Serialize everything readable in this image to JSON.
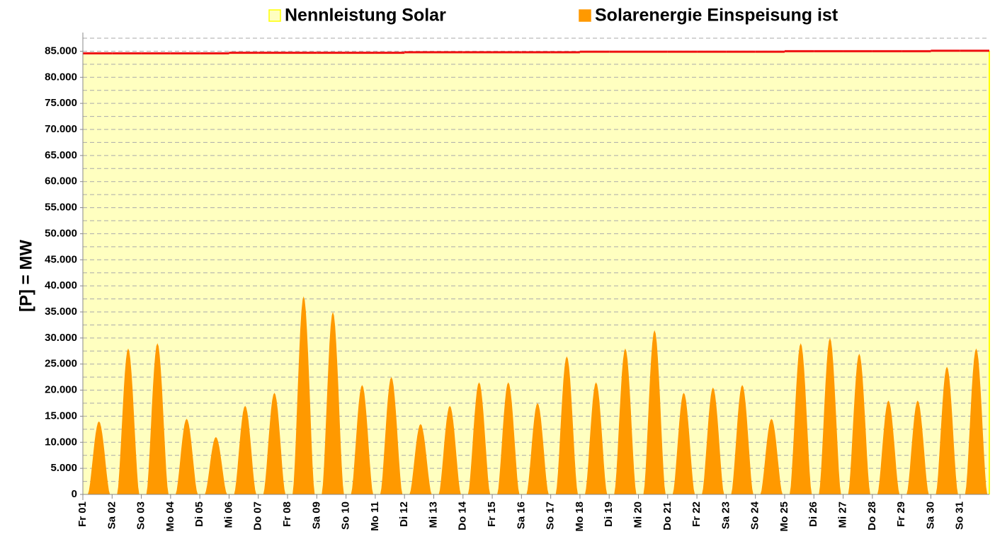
{
  "chart_data": {
    "type": "area",
    "y_label": "[P] = MW",
    "categories": [
      "Fr 01",
      "Sa 02",
      "So 03",
      "Mo 04",
      "Di 05",
      "Mi 06",
      "Do 07",
      "Fr 08",
      "Sa 09",
      "So 10",
      "Mo 11",
      "Di 12",
      "Mi 13",
      "Do 14",
      "Fr 15",
      "Sa 16",
      "So 17",
      "Mo 18",
      "Di 19",
      "Mi 20",
      "Do 21",
      "Fr 22",
      "Sa 23",
      "So 24",
      "Mo 25",
      "Di 26",
      "Mi 27",
      "Do 28",
      "Fr 29",
      "Sa 30",
      "So 31"
    ],
    "series": [
      {
        "name": "Nennleistung Solar",
        "color": "#ffffc0",
        "border_color": "#ffff00",
        "line_color": "#ee1111",
        "values": [
          84600,
          84600,
          84600,
          84600,
          84600,
          84700,
          84700,
          84700,
          84700,
          84700,
          84700,
          84800,
          84800,
          84800,
          84800,
          84800,
          84800,
          84900,
          84900,
          84900,
          84900,
          84900,
          84900,
          84900,
          85000,
          85000,
          85000,
          85000,
          85000,
          85100,
          85100
        ]
      },
      {
        "name": "Solarenergie Einspeisung ist",
        "color": "#ff9900",
        "values": [
          14000,
          28000,
          29000,
          14500,
          11000,
          17000,
          19500,
          38000,
          35000,
          21000,
          22500,
          13500,
          17000,
          21500,
          21500,
          17500,
          26500,
          21500,
          28000,
          31500,
          19500,
          20500,
          21000,
          14500,
          29000,
          30000,
          27000,
          18000,
          18000,
          24500,
          28000
        ]
      }
    ],
    "ylim": [
      0,
      87500
    ],
    "yticks": [
      0,
      {
        "value": 5000,
        "label": "5.000"
      },
      {
        "value": 10000,
        "label": "10.000"
      },
      {
        "value": 15000,
        "label": "15.000"
      },
      {
        "value": 20000,
        "label": "20.000"
      },
      {
        "value": 25000,
        "label": "25.000"
      },
      {
        "value": 30000,
        "label": "30.000"
      },
      {
        "value": 35000,
        "label": "35.000"
      },
      {
        "value": 40000,
        "label": "40.000"
      },
      {
        "value": 45000,
        "label": "45.000"
      },
      {
        "value": 50000,
        "label": "50.000"
      },
      {
        "value": 55000,
        "label": "55.000"
      },
      {
        "value": 60000,
        "label": "60.000"
      },
      {
        "value": 65000,
        "label": "65.000"
      },
      {
        "value": 70000,
        "label": "70.000"
      },
      {
        "value": 75000,
        "label": "75.000"
      },
      {
        "value": 80000,
        "label": "80.000"
      },
      {
        "value": 85000,
        "label": "85.000"
      }
    ],
    "y_minor_ticks": [
      2500,
      7500,
      12500,
      17500,
      22500,
      27500,
      32500,
      37500,
      42500,
      47500,
      52500,
      57500,
      62500,
      67500,
      72500,
      77500,
      82500,
      87500
    ],
    "grid": true
  }
}
